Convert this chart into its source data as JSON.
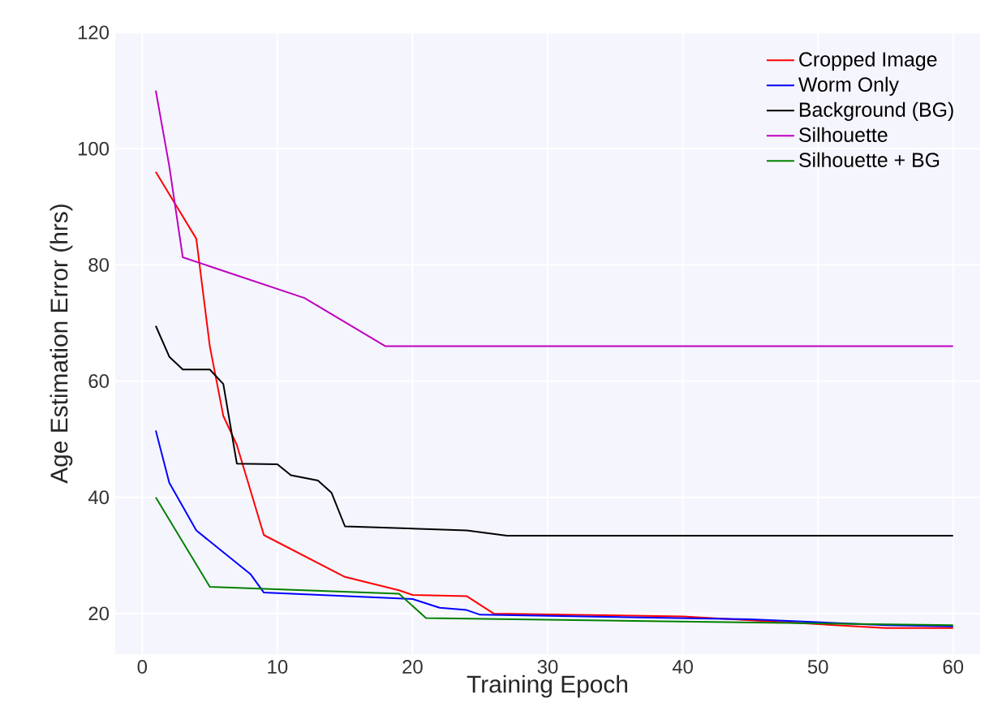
{
  "chart_data": {
    "type": "line",
    "xlabel": "Training Epoch",
    "ylabel": "Age Estimation Error (hrs)",
    "xlim": [
      -2,
      62
    ],
    "ylim": [
      13,
      120
    ],
    "xticks": [
      0,
      10,
      20,
      30,
      40,
      50,
      60
    ],
    "yticks": [
      20,
      40,
      60,
      80,
      100,
      120
    ],
    "grid": true,
    "legend": "top right",
    "series": [
      {
        "name": "Cropped Image",
        "color": "#ff0000",
        "x": [
          1,
          4,
          5,
          6,
          7,
          9,
          15,
          19,
          20,
          24,
          26,
          40,
          55,
          60
        ],
        "values": [
          96,
          84.5,
          66,
          54,
          49,
          33.5,
          26.3,
          24,
          23.2,
          23,
          20,
          19.5,
          17.5,
          17.5
        ]
      },
      {
        "name": "Worm Only",
        "color": "#0000ff",
        "x": [
          1,
          2,
          4,
          8,
          9,
          20,
          22,
          24,
          25,
          45,
          55,
          60
        ],
        "values": [
          51.5,
          42.5,
          34.3,
          26.8,
          23.6,
          22.5,
          21,
          20.6,
          19.8,
          19,
          18,
          17.8
        ]
      },
      {
        "name": "Background (BG)",
        "color": "#000000",
        "x": [
          1,
          2,
          3,
          5,
          6,
          7,
          10,
          11,
          13,
          14,
          15,
          24,
          27,
          60
        ],
        "values": [
          69.5,
          64.2,
          62,
          62,
          59.5,
          45.8,
          45.7,
          43.8,
          42.9,
          40.8,
          35,
          34.3,
          33.4,
          33.4
        ]
      },
      {
        "name": "Silhouette",
        "color": "#bf00bf",
        "x": [
          1,
          2,
          3,
          12,
          18,
          60
        ],
        "values": [
          110,
          97,
          81.3,
          74.3,
          66,
          66
        ]
      },
      {
        "name": "Silhouette + BG",
        "color": "#008000",
        "x": [
          1,
          5,
          19,
          21,
          50,
          60
        ],
        "values": [
          40,
          24.6,
          23.4,
          19.2,
          18.3,
          18
        ]
      }
    ]
  }
}
